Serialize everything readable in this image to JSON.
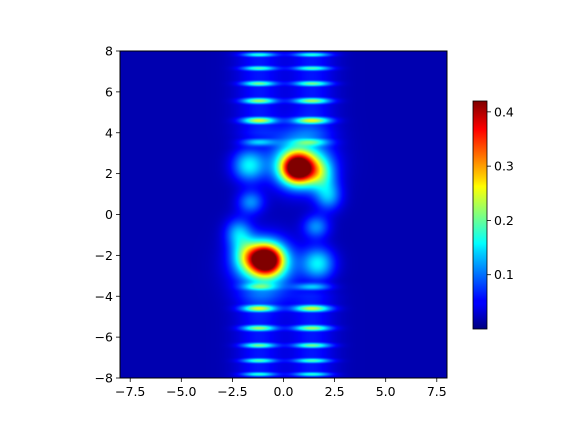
{
  "chart_data": {
    "type": "heatmap",
    "title": "",
    "xlabel": "",
    "ylabel": "",
    "xlim": [
      -8,
      8
    ],
    "ylim": [
      -8,
      8
    ],
    "x_ticks": [
      -7.5,
      -5.0,
      -2.5,
      0.0,
      2.5,
      5.0,
      7.5
    ],
    "x_tick_labels": [
      "−7.5",
      "−5.0",
      "−2.5",
      "0.0",
      "2.5",
      "5.0",
      "7.5"
    ],
    "y_ticks": [
      -8,
      -6,
      -4,
      -2,
      0,
      2,
      4,
      6,
      8
    ],
    "y_tick_labels": [
      "−8",
      "−6",
      "−4",
      "−2",
      "0",
      "2",
      "4",
      "6",
      "8"
    ],
    "colormap": "jet",
    "grid": false,
    "colorbar": {
      "range": [
        0.0,
        0.42
      ],
      "ticks": [
        0.1,
        0.2,
        0.3,
        0.4
      ],
      "tick_labels": [
        "0.1",
        "0.2",
        "0.3",
        "0.4"
      ]
    },
    "features": [
      {
        "label": "peak",
        "x": 0.7,
        "y": 2.2,
        "value": 0.42
      },
      {
        "label": "peak",
        "x": -0.9,
        "y": -2.2,
        "value": 0.42
      },
      {
        "label": "upper fringes",
        "x_range": [
          -3,
          3
        ],
        "y_range": [
          4,
          8
        ],
        "value": 0.2
      },
      {
        "label": "lower fringes",
        "x_range": [
          -3,
          3
        ],
        "y_range": [
          -8,
          -4
        ],
        "value": 0.2
      }
    ]
  }
}
